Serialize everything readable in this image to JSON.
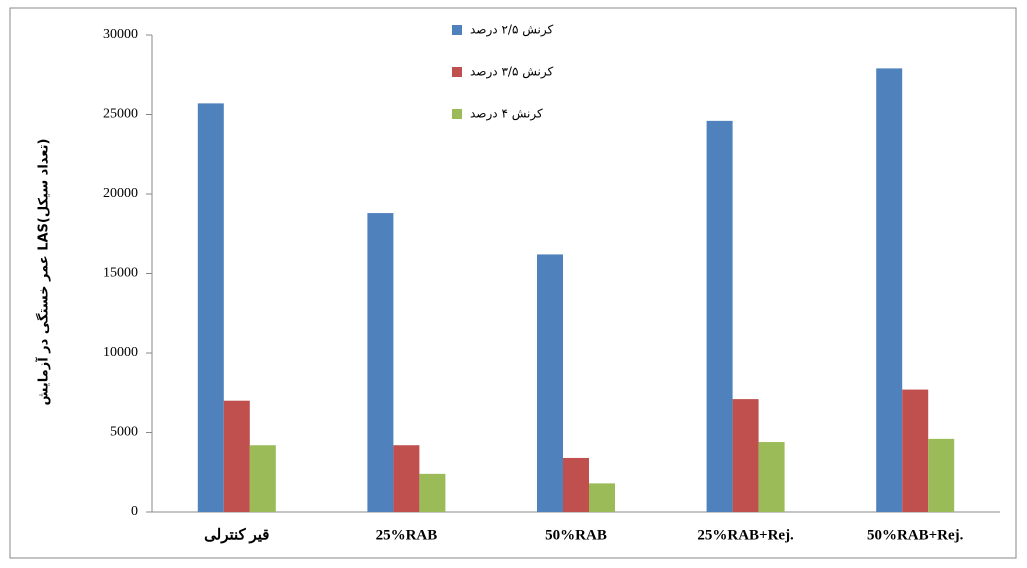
{
  "chart_data": {
    "type": "bar",
    "ylabel": "عمر خستگی در آزمایش LAS(تعداد سیکل)",
    "categories": [
      "قیر کنترلی",
      "25%RAB",
      "50%RAB",
      "25%RAB+Rej.",
      "50%RAB+Rej."
    ],
    "series": [
      {
        "name": "کرنش ۲/۵ درصد",
        "color": "#4f81bd",
        "values": [
          25700,
          18800,
          16200,
          24600,
          27900
        ]
      },
      {
        "name": "کرنش ۳/۵ درصد",
        "color": "#c0504d",
        "values": [
          7000,
          4200,
          3400,
          7100,
          7700
        ]
      },
      {
        "name": "کرنش ۴ درصد",
        "color": "#9bbb59",
        "values": [
          4200,
          2400,
          1800,
          4400,
          4600
        ]
      }
    ],
    "ylim": [
      0,
      30000
    ],
    "yticks": [
      0,
      5000,
      10000,
      15000,
      20000,
      25000,
      30000
    ]
  }
}
